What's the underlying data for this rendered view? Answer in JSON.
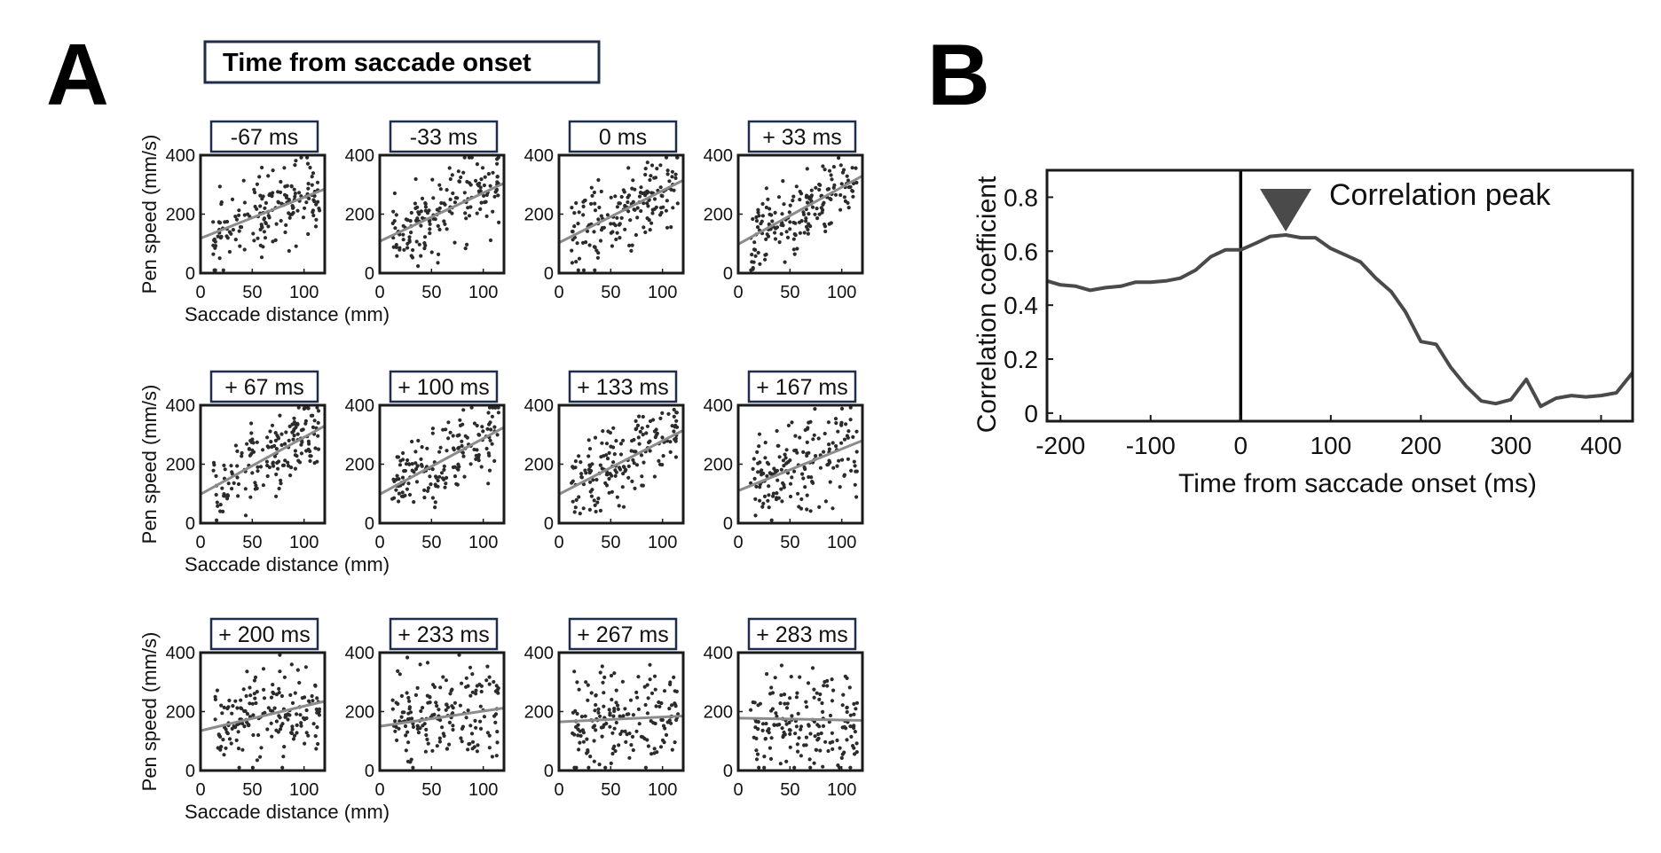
{
  "panel_a": {
    "letter": "A",
    "header": "Time from saccade onset",
    "y_label": "Pen speed (mm/s)",
    "x_label": "Saccade distance (mm)"
  },
  "panel_b": {
    "letter": "B",
    "annotation": "Correlation peak"
  },
  "colors": {
    "axis": "#1a1a1a",
    "dots": "#2b2b2b",
    "fit_line": "#8c8c8c",
    "corr_line": "#4a4a4a",
    "label_border": "#1f2d4d",
    "marker": "#4a4a4a"
  },
  "chart_data": [
    {
      "type": "scatter",
      "title": "-67 ms",
      "xlabel": "Saccade distance (mm)",
      "ylabel": "Pen speed (mm/s)",
      "xlim": [
        0,
        120
      ],
      "ylim": [
        0,
        400
      ],
      "xticks": [
        0,
        50,
        100
      ],
      "yticks": [
        0,
        200,
        400
      ],
      "fit": {
        "x": [
          0,
          120
        ],
        "y": [
          118,
          285
        ]
      }
    },
    {
      "type": "scatter",
      "title": "-33 ms",
      "xlabel": "",
      "ylabel": "",
      "xlim": [
        0,
        120
      ],
      "ylim": [
        0,
        400
      ],
      "xticks": [
        0,
        50,
        100
      ],
      "yticks": [
        0,
        200,
        400
      ],
      "fit": {
        "x": [
          0,
          120
        ],
        "y": [
          108,
          305
        ]
      }
    },
    {
      "type": "scatter",
      "title": "0 ms",
      "xlabel": "",
      "ylabel": "",
      "xlim": [
        0,
        120
      ],
      "ylim": [
        0,
        400
      ],
      "xticks": [
        0,
        50,
        100
      ],
      "yticks": [
        0,
        200,
        400
      ],
      "fit": {
        "x": [
          0,
          120
        ],
        "y": [
          103,
          315
        ]
      }
    },
    {
      "type": "scatter",
      "title": "+ 33 ms",
      "xlabel": "",
      "ylabel": "",
      "xlim": [
        0,
        120
      ],
      "ylim": [
        0,
        400
      ],
      "xticks": [
        0,
        50,
        100
      ],
      "yticks": [
        0,
        200,
        400
      ],
      "fit": {
        "x": [
          0,
          120
        ],
        "y": [
          98,
          330
        ]
      }
    },
    {
      "type": "scatter",
      "title": "+ 67 ms",
      "xlabel": "Saccade distance (mm)",
      "ylabel": "Pen speed (mm/s)",
      "xlim": [
        0,
        120
      ],
      "ylim": [
        0,
        400
      ],
      "xticks": [
        0,
        50,
        100
      ],
      "yticks": [
        0,
        200,
        400
      ],
      "fit": {
        "x": [
          0,
          120
        ],
        "y": [
          98,
          330
        ]
      }
    },
    {
      "type": "scatter",
      "title": "+ 100 ms",
      "xlabel": "",
      "ylabel": "",
      "xlim": [
        0,
        120
      ],
      "ylim": [
        0,
        400
      ],
      "xticks": [
        0,
        50,
        100
      ],
      "yticks": [
        0,
        200,
        400
      ],
      "fit": {
        "x": [
          0,
          120
        ],
        "y": [
          98,
          325
        ]
      }
    },
    {
      "type": "scatter",
      "title": "+ 133 ms",
      "xlabel": "",
      "ylabel": "",
      "xlim": [
        0,
        120
      ],
      "ylim": [
        0,
        400
      ],
      "xticks": [
        0,
        50,
        100
      ],
      "yticks": [
        0,
        200,
        400
      ],
      "fit": {
        "x": [
          0,
          120
        ],
        "y": [
          98,
          315
        ]
      }
    },
    {
      "type": "scatter",
      "title": "+ 167 ms",
      "xlabel": "",
      "ylabel": "",
      "xlim": [
        0,
        120
      ],
      "ylim": [
        0,
        400
      ],
      "xticks": [
        0,
        50,
        100
      ],
      "yticks": [
        0,
        200,
        400
      ],
      "fit": {
        "x": [
          0,
          120
        ],
        "y": [
          110,
          280
        ]
      }
    },
    {
      "type": "scatter",
      "title": "+ 200 ms",
      "xlabel": "Saccade distance (mm)",
      "ylabel": "Pen speed (mm/s)",
      "xlim": [
        0,
        120
      ],
      "ylim": [
        0,
        400
      ],
      "xticks": [
        0,
        50,
        100
      ],
      "yticks": [
        0,
        200,
        400
      ],
      "fit": {
        "x": [
          0,
          120
        ],
        "y": [
          135,
          235
        ]
      }
    },
    {
      "type": "scatter",
      "title": "+ 233 ms",
      "xlabel": "",
      "ylabel": "",
      "xlim": [
        0,
        120
      ],
      "ylim": [
        0,
        400
      ],
      "xticks": [
        0,
        50,
        100
      ],
      "yticks": [
        0,
        200,
        400
      ],
      "fit": {
        "x": [
          0,
          120
        ],
        "y": [
          150,
          212
        ]
      }
    },
    {
      "type": "scatter",
      "title": "+ 267 ms",
      "xlabel": "",
      "ylabel": "",
      "xlim": [
        0,
        120
      ],
      "ylim": [
        0,
        400
      ],
      "xticks": [
        0,
        50,
        100
      ],
      "yticks": [
        0,
        200,
        400
      ],
      "fit": {
        "x": [
          0,
          120
        ],
        "y": [
          165,
          185
        ]
      }
    },
    {
      "type": "scatter",
      "title": "+ 283 ms",
      "xlabel": "",
      "ylabel": "",
      "xlim": [
        0,
        120
      ],
      "ylim": [
        0,
        400
      ],
      "xticks": [
        0,
        50,
        100
      ],
      "yticks": [
        0,
        200,
        400
      ],
      "fit": {
        "x": [
          0,
          120
        ],
        "y": [
          178,
          170
        ]
      }
    },
    {
      "type": "line",
      "title": "",
      "xlabel": "Time from saccade onset (ms)",
      "ylabel": "Correlation coefficient",
      "xlim": [
        -215,
        435
      ],
      "ylim": [
        -0.03,
        0.9
      ],
      "xticks": [
        -200,
        -100,
        0,
        100,
        200,
        300,
        400
      ],
      "yticks": [
        0,
        0.2,
        0.4,
        0.6,
        0.8
      ],
      "vline_x": 0,
      "peak": {
        "x": 50,
        "y": 0.66,
        "label": "Correlation peak"
      },
      "series": [
        {
          "x": [
            -215,
            -200,
            -183,
            -167,
            -150,
            -133,
            -117,
            -100,
            -83,
            -67,
            -50,
            -33,
            -17,
            0,
            17,
            33,
            50,
            67,
            83,
            100,
            117,
            133,
            150,
            167,
            183,
            200,
            217,
            233,
            250,
            267,
            283,
            300,
            317,
            333,
            350,
            367,
            383,
            400,
            417,
            435
          ],
          "y": [
            0.49,
            0.475,
            0.47,
            0.455,
            0.465,
            0.47,
            0.485,
            0.485,
            0.49,
            0.5,
            0.53,
            0.58,
            0.605,
            0.605,
            0.63,
            0.655,
            0.66,
            0.65,
            0.65,
            0.61,
            0.585,
            0.56,
            0.5,
            0.45,
            0.375,
            0.265,
            0.255,
            0.17,
            0.1,
            0.045,
            0.035,
            0.05,
            0.125,
            0.025,
            0.055,
            0.065,
            0.06,
            0.065,
            0.075,
            0.15
          ]
        }
      ]
    }
  ]
}
